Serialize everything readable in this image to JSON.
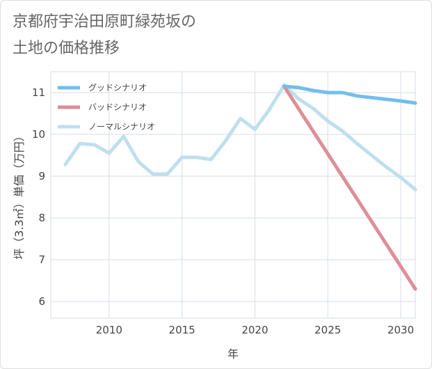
{
  "title_lines": [
    "京都府宇治田原町緑苑坂の",
    "土地の価格推移"
  ],
  "chart_data": {
    "type": "line",
    "xlabel": "年",
    "ylabel": "坪（3.3㎡）単価（万円）",
    "xlim": [
      2006,
      2031
    ],
    "ylim": [
      5.6,
      11.5
    ],
    "x_ticks": [
      2010,
      2015,
      2020,
      2025,
      2030
    ],
    "y_ticks": [
      6,
      7,
      8,
      9,
      10,
      11
    ],
    "grid": true,
    "legend_position": "top-left",
    "series": [
      {
        "name": "グッドシナリオ",
        "color": "#74bdec",
        "x": [
          2022,
          2023,
          2024,
          2025,
          2026,
          2027,
          2028,
          2029,
          2030,
          2031
        ],
        "y": [
          11.15,
          11.12,
          11.05,
          11.0,
          11.0,
          10.92,
          10.88,
          10.84,
          10.8,
          10.75
        ]
      },
      {
        "name": "バッドシナリオ",
        "color": "#de8e97",
        "x": [
          2022,
          2031
        ],
        "y": [
          11.15,
          6.3
        ]
      },
      {
        "name": "ノーマルシナリオ",
        "color": "#bfdfee",
        "x": [
          2007,
          2008,
          2009,
          2010,
          2011,
          2012,
          2013,
          2014,
          2015,
          2016,
          2017,
          2018,
          2019,
          2020,
          2021,
          2022,
          2023,
          2024,
          2025,
          2026,
          2027,
          2028,
          2029,
          2030,
          2031
        ],
        "y": [
          9.28,
          9.78,
          9.75,
          9.55,
          9.95,
          9.35,
          9.05,
          9.05,
          9.45,
          9.45,
          9.4,
          9.85,
          10.38,
          10.12,
          10.6,
          11.18,
          10.85,
          10.62,
          10.32,
          10.08,
          9.78,
          9.5,
          9.22,
          8.97,
          8.68
        ]
      }
    ]
  }
}
